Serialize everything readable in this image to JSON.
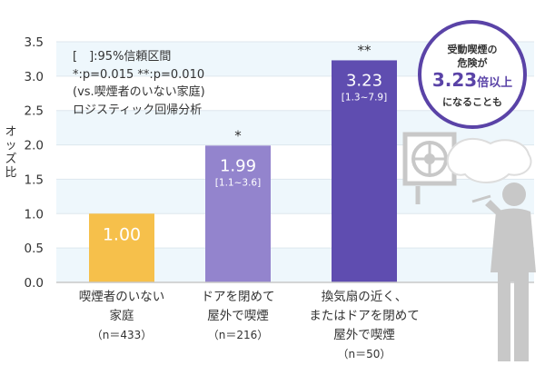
{
  "chart_data": {
    "type": "bar",
    "ylabel": "オッズ比",
    "ylim": [
      0,
      3.5
    ],
    "yticks": [
      "0.0",
      "0.5",
      "1.0",
      "1.5",
      "2.0",
      "2.5",
      "3.0",
      "3.5"
    ],
    "grid": true,
    "categories": [
      {
        "lines": [
          "喫煙者のいない",
          "家庭"
        ],
        "n": "（n＝433）"
      },
      {
        "lines": [
          "ドアを閉めて",
          "屋外で喫煙"
        ],
        "n": "（n＝216）"
      },
      {
        "lines": [
          "換気扇の近く、",
          "またはドアを閉めて",
          "屋外で喫煙"
        ],
        "n": "（n＝50）"
      }
    ],
    "values": [
      1.0,
      1.99,
      3.23
    ],
    "value_labels": [
      "1.00",
      "1.99",
      "3.23"
    ],
    "ci_labels": [
      "",
      "[1.1~3.6]",
      "[1.3~7.9]"
    ],
    "significance": [
      "",
      "*",
      "**"
    ],
    "colors": [
      "#f6c04b",
      "#9384cd",
      "#5f4db0"
    ],
    "legend_text": [
      "[　]:95%信頼区間",
      "*:p=0.015 **:p=0.010",
      "(vs.喫煙者のいない家庭)",
      "ロジスティック回帰分析"
    ]
  },
  "callout": {
    "line1": "受動喫煙の",
    "line2": "危険が",
    "value": "3.23",
    "unit": "倍以上",
    "line4": "になることも",
    "accent_color": "#5a43a7"
  }
}
